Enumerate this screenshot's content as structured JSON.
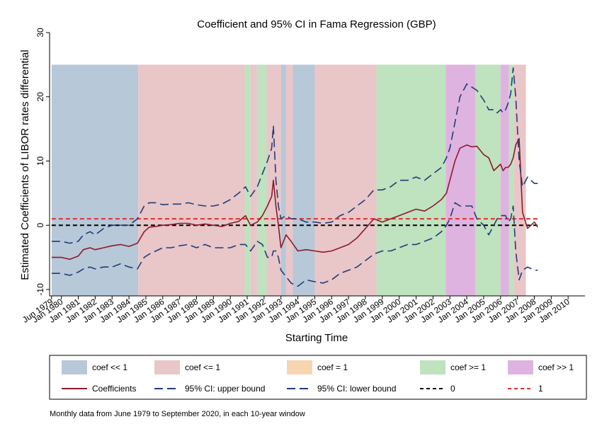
{
  "chart_data": {
    "type": "line",
    "title": "Coefficient and 95% CI in Fama Regression (GBP)",
    "xlabel": "Starting Time",
    "ylabel": "Estimated Coefficients of LIBOR rates differential",
    "ylim": [
      -11,
      30
    ],
    "yticks": [
      -10,
      0,
      10,
      20,
      30
    ],
    "xlim": [
      1979.3,
      2011.0
    ],
    "xticks": [
      {
        "label": "Jun 1979",
        "x": 1979.42
      },
      {
        "label": "Jan 1980",
        "x": 1980.0
      },
      {
        "label": "Jan 1981",
        "x": 1981.0
      },
      {
        "label": "Jan 1982",
        "x": 1982.0
      },
      {
        "label": "Jan 1983",
        "x": 1983.0
      },
      {
        "label": "Jan 1984",
        "x": 1984.0
      },
      {
        "label": "Jan 1985",
        "x": 1985.0
      },
      {
        "label": "Jan 1986",
        "x": 1986.0
      },
      {
        "label": "Jan 1987",
        "x": 1987.0
      },
      {
        "label": "Jan 1988",
        "x": 1988.0
      },
      {
        "label": "Jan 1989",
        "x": 1989.0
      },
      {
        "label": "Jan 1990",
        "x": 1990.0
      },
      {
        "label": "Jan 1991",
        "x": 1991.0
      },
      {
        "label": "Jan 1992",
        "x": 1992.0
      },
      {
        "label": "Jan 1993",
        "x": 1993.0
      },
      {
        "label": "Jan 1994",
        "x": 1994.0
      },
      {
        "label": "Jan 1995",
        "x": 1995.0
      },
      {
        "label": "Jan 1996",
        "x": 1996.0
      },
      {
        "label": "Jan 1997",
        "x": 1997.0
      },
      {
        "label": "Jan 1998",
        "x": 1998.0
      },
      {
        "label": "Jan 1999",
        "x": 1999.0
      },
      {
        "label": "Jan 2000",
        "x": 2000.0
      },
      {
        "label": "Jan 2001",
        "x": 2001.0
      },
      {
        "label": "Jan 2002",
        "x": 2002.0
      },
      {
        "label": "Jan 2003",
        "x": 2003.0
      },
      {
        "label": "Jan 2004",
        "x": 2004.0
      },
      {
        "label": "Jan 2005",
        "x": 2005.0
      },
      {
        "label": "Jan 2006",
        "x": 2006.0
      },
      {
        "label": "Jan 2007",
        "x": 2007.0
      },
      {
        "label": "Jan 2008",
        "x": 2008.0
      },
      {
        "label": "Jan 2009",
        "x": 2009.0
      },
      {
        "label": "Jan 2010",
        "x": 2010.0
      }
    ],
    "band_top": 25,
    "band_bottom": -11,
    "bands": [
      {
        "start": 1979.42,
        "end": 1984.55,
        "category": "coef << 1"
      },
      {
        "start": 1984.55,
        "end": 1990.85,
        "category": "coef <= 1"
      },
      {
        "start": 1990.85,
        "end": 1991.2,
        "category": "coef >= 1"
      },
      {
        "start": 1991.2,
        "end": 1991.6,
        "category": "coef <= 1"
      },
      {
        "start": 1991.6,
        "end": 1992.15,
        "category": "coef >= 1"
      },
      {
        "start": 1992.15,
        "end": 1993.0,
        "category": "coef <= 1"
      },
      {
        "start": 1993.0,
        "end": 1993.3,
        "category": "coef << 1"
      },
      {
        "start": 1993.3,
        "end": 1993.7,
        "category": "coef <= 1"
      },
      {
        "start": 1993.7,
        "end": 1995.0,
        "category": "coef << 1"
      },
      {
        "start": 1995.0,
        "end": 1998.65,
        "category": "coef <= 1"
      },
      {
        "start": 1998.65,
        "end": 2002.75,
        "category": "coef >= 1"
      },
      {
        "start": 2002.75,
        "end": 2004.5,
        "category": "coef >> 1"
      },
      {
        "start": 2004.5,
        "end": 2006.0,
        "category": "coef >= 1"
      },
      {
        "start": 2006.0,
        "end": 2006.5,
        "category": "coef >> 1"
      },
      {
        "start": 2006.5,
        "end": 2006.8,
        "category": "coef >= 1"
      },
      {
        "start": 2006.8,
        "end": 2007.5,
        "category": "coef <= 1"
      }
    ],
    "hlines": [
      {
        "name": "0",
        "y": 0,
        "color": "#000000"
      },
      {
        "name": "1",
        "y": 1,
        "color": "#e03030"
      }
    ],
    "series": [
      {
        "name": "Coefficients",
        "color": "#8b1a2b",
        "dash": "solid",
        "x": [
          1979.42,
          1980.0,
          1980.5,
          1981.0,
          1981.3,
          1981.7,
          1982.0,
          1982.5,
          1983.0,
          1983.5,
          1984.0,
          1984.5,
          1984.9,
          1985.2,
          1985.6,
          1986.0,
          1986.5,
          1987.0,
          1987.5,
          1988.0,
          1988.5,
          1989.0,
          1989.5,
          1990.0,
          1990.5,
          1990.9,
          1991.2,
          1991.6,
          1991.9,
          1992.2,
          1992.45,
          1992.55,
          1992.7,
          1992.85,
          1993.0,
          1993.3,
          1993.6,
          1994.0,
          1994.5,
          1995.0,
          1995.5,
          1996.0,
          1996.5,
          1997.0,
          1997.5,
          1998.0,
          1998.5,
          1999.0,
          1999.5,
          2000.0,
          2000.5,
          2001.0,
          2001.5,
          2002.0,
          2002.5,
          2002.8,
          2003.0,
          2003.3,
          2003.6,
          2004.0,
          2004.3,
          2004.6,
          2005.0,
          2005.3,
          2005.6,
          2005.8,
          2006.0,
          2006.15,
          2006.3,
          2006.45,
          2006.6,
          2006.75,
          2006.9,
          2007.1,
          2007.3,
          2007.6,
          2008.0,
          2008.2
        ],
        "y": [
          -5.0,
          -5.0,
          -5.3,
          -4.8,
          -3.8,
          -3.5,
          -3.8,
          -3.5,
          -3.2,
          -3.0,
          -3.3,
          -2.8,
          -1.0,
          -0.3,
          -0.2,
          0.0,
          0.1,
          0.3,
          0.3,
          0.0,
          0.2,
          0.0,
          -0.2,
          0.3,
          0.6,
          1.5,
          0.0,
          0.5,
          1.5,
          3.0,
          4.5,
          7.0,
          3.0,
          0.0,
          -3.5,
          -1.5,
          -2.5,
          -4.0,
          -3.8,
          -4.0,
          -4.2,
          -4.0,
          -3.5,
          -3.0,
          -2.0,
          -0.5,
          1.0,
          0.5,
          1.0,
          1.5,
          2.0,
          2.5,
          2.2,
          3.0,
          4.0,
          5.0,
          7.0,
          10.0,
          12.0,
          12.5,
          12.2,
          12.3,
          11.0,
          10.5,
          8.5,
          9.0,
          9.5,
          8.5,
          9.0,
          9.0,
          9.5,
          10.5,
          12.5,
          13.5,
          2.0,
          -0.5,
          0.5,
          -0.3
        ]
      },
      {
        "name": "95% CI: upper bound",
        "color": "#1f3d7a",
        "dash": "dashed",
        "x": [
          1979.42,
          1980.0,
          1980.5,
          1981.0,
          1981.3,
          1981.7,
          1982.0,
          1982.5,
          1983.0,
          1983.5,
          1984.0,
          1984.5,
          1984.9,
          1985.2,
          1985.6,
          1986.0,
          1986.5,
          1987.0,
          1987.5,
          1988.0,
          1988.5,
          1989.0,
          1989.5,
          1990.0,
          1990.5,
          1990.9,
          1991.2,
          1991.6,
          1991.9,
          1992.2,
          1992.45,
          1992.55,
          1992.7,
          1992.85,
          1993.0,
          1993.3,
          1993.6,
          1994.0,
          1994.5,
          1995.0,
          1995.5,
          1996.0,
          1996.5,
          1997.0,
          1997.5,
          1998.0,
          1998.5,
          1999.0,
          1999.5,
          2000.0,
          2000.5,
          2001.0,
          2001.5,
          2002.0,
          2002.5,
          2002.8,
          2003.0,
          2003.3,
          2003.6,
          2004.0,
          2004.3,
          2004.6,
          2005.0,
          2005.3,
          2005.6,
          2005.8,
          2006.0,
          2006.15,
          2006.3,
          2006.45,
          2006.6,
          2006.75,
          2006.9,
          2007.1,
          2007.3,
          2007.6,
          2008.0,
          2008.2
        ],
        "y": [
          -2.5,
          -2.5,
          -2.8,
          -2.5,
          -1.5,
          -1.0,
          -1.5,
          -0.5,
          0.0,
          0.0,
          0.0,
          1.0,
          3.0,
          3.5,
          3.5,
          3.2,
          3.3,
          3.3,
          3.5,
          3.2,
          3.0,
          3.0,
          3.3,
          4.0,
          5.0,
          6.0,
          4.5,
          6.0,
          8.0,
          10.0,
          12.0,
          15.5,
          7.0,
          3.0,
          1.0,
          1.5,
          1.0,
          1.0,
          0.5,
          0.5,
          0.3,
          0.5,
          1.5,
          2.0,
          3.0,
          4.0,
          5.5,
          5.5,
          6.0,
          7.0,
          7.0,
          7.5,
          7.0,
          8.0,
          9.0,
          10.5,
          12.0,
          16.0,
          20.0,
          22.0,
          21.5,
          21.0,
          19.5,
          18.0,
          18.0,
          17.5,
          18.0,
          17.5,
          18.0,
          19.0,
          20.5,
          24.5,
          20.0,
          10.0,
          6.0,
          7.5,
          6.5,
          6.5
        ]
      },
      {
        "name": "95% CI: lower bound",
        "color": "#1f3d7a",
        "dash": "dashed",
        "x": [
          1979.42,
          1980.0,
          1980.5,
          1981.0,
          1981.3,
          1981.7,
          1982.0,
          1982.5,
          1983.0,
          1983.5,
          1984.0,
          1984.5,
          1984.9,
          1985.2,
          1985.6,
          1986.0,
          1986.5,
          1987.0,
          1987.5,
          1988.0,
          1988.5,
          1989.0,
          1989.5,
          1990.0,
          1990.5,
          1990.9,
          1991.2,
          1991.6,
          1991.9,
          1992.2,
          1992.45,
          1992.55,
          1992.7,
          1992.85,
          1993.0,
          1993.3,
          1993.6,
          1994.0,
          1994.5,
          1995.0,
          1995.5,
          1996.0,
          1996.5,
          1997.0,
          1997.5,
          1998.0,
          1998.5,
          1999.0,
          1999.5,
          2000.0,
          2000.5,
          2001.0,
          2001.5,
          2002.0,
          2002.5,
          2002.8,
          2003.0,
          2003.3,
          2003.6,
          2004.0,
          2004.3,
          2004.6,
          2005.0,
          2005.3,
          2005.6,
          2005.8,
          2006.0,
          2006.15,
          2006.3,
          2006.45,
          2006.6,
          2006.75,
          2006.9,
          2007.1,
          2007.3,
          2007.6,
          2008.0,
          2008.2
        ],
        "y": [
          -7.5,
          -7.5,
          -7.8,
          -7.3,
          -6.8,
          -6.5,
          -6.8,
          -6.5,
          -6.5,
          -6.0,
          -6.5,
          -6.8,
          -5.0,
          -4.5,
          -4.0,
          -3.5,
          -3.5,
          -3.2,
          -3.0,
          -3.5,
          -3.0,
          -3.5,
          -3.5,
          -3.5,
          -3.0,
          -3.0,
          -4.0,
          -2.5,
          -3.0,
          -5.0,
          -5.0,
          -4.0,
          -4.0,
          -5.0,
          -7.0,
          -8.0,
          -9.0,
          -9.5,
          -8.5,
          -8.8,
          -9.0,
          -8.5,
          -7.5,
          -7.0,
          -6.5,
          -5.5,
          -4.5,
          -4.0,
          -4.0,
          -3.5,
          -3.0,
          -3.0,
          -2.5,
          -2.0,
          -1.0,
          0.0,
          1.0,
          3.5,
          3.0,
          3.0,
          3.0,
          1.0,
          0.0,
          -1.5,
          0.0,
          1.0,
          1.5,
          1.5,
          1.5,
          0.5,
          1.0,
          3.0,
          -4.0,
          -8.5,
          -7.0,
          -6.5,
          -7.0,
          -7.0
        ]
      }
    ],
    "legend": {
      "placement": "bottom",
      "items": [
        {
          "label": "coef << 1",
          "kind": "box",
          "color": "#b7c8d8"
        },
        {
          "label": "coef <= 1",
          "kind": "box",
          "color": "#e9c6c8"
        },
        {
          "label": "coef = 1",
          "kind": "box",
          "color": "#f7d5b0"
        },
        {
          "label": "coef >= 1",
          "kind": "box",
          "color": "#bfe2bf"
        },
        {
          "label": "coef >> 1",
          "kind": "box",
          "color": "#dfb3e0"
        },
        {
          "label": "Coefficients",
          "kind": "solid",
          "color": "#8b1a2b"
        },
        {
          "label": "95% CI: upper bound",
          "kind": "dash",
          "color": "#1f3d7a"
        },
        {
          "label": "95% CI: lower bound",
          "kind": "dash",
          "color": "#1f3d7a"
        },
        {
          "label": "0",
          "kind": "dash-small",
          "color": "#000000"
        },
        {
          "label": "1",
          "kind": "dash-small",
          "color": "#e03030"
        }
      ]
    },
    "note": "Monthly data from June 1979 to September 2020, in each 10-year window",
    "category_colors": {
      "coef << 1": "#b7c8d8",
      "coef <= 1": "#e9c6c8",
      "coef = 1": "#f7d5b0",
      "coef >= 1": "#bfe2bf",
      "coef >> 1": "#dfb3e0"
    }
  }
}
